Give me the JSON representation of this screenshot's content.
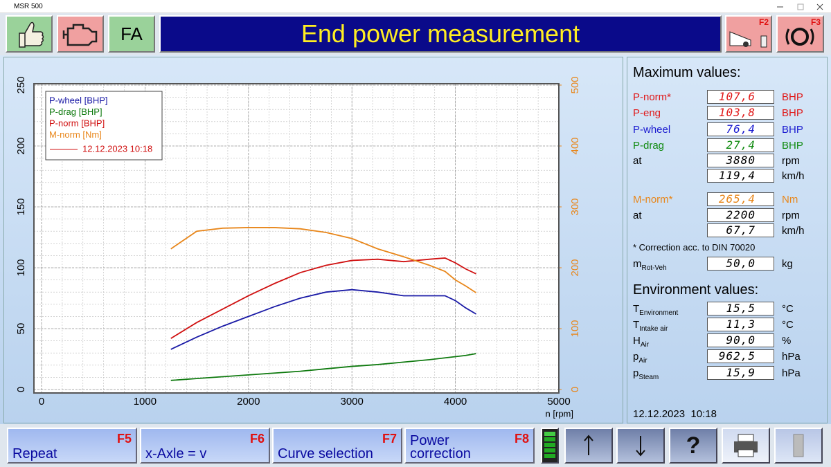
{
  "window": {
    "title": "MSR 500"
  },
  "toolbar": {
    "fa_label": "FA",
    "title": "End power measurement",
    "f2_label": "F2",
    "f3_label": "F3"
  },
  "chart_data": {
    "type": "line",
    "x": [
      1250,
      1500,
      1750,
      2000,
      2250,
      2500,
      2750,
      3000,
      3250,
      3500,
      3750,
      3900,
      4000,
      4100,
      4200
    ],
    "series": [
      {
        "name": "P-wheel [BHP]",
        "color": "#1a1aa6",
        "values": [
          33,
          43,
          52,
          60,
          68,
          75,
          80,
          82,
          80,
          77,
          77,
          77,
          73,
          67,
          62
        ]
      },
      {
        "name": "P-drag [BHP]",
        "color": "#0f7a0f",
        "values": [
          7.5,
          9,
          10.5,
          12,
          13.5,
          15,
          17,
          19,
          20.5,
          22.5,
          24.5,
          26,
          27,
          28,
          29.5
        ]
      },
      {
        "name": "P-norm [BHP]",
        "color": "#d01010",
        "values": [
          42,
          55,
          66,
          77,
          87,
          96,
          102,
          106,
          107,
          105,
          107,
          108,
          104,
          99,
          95
        ]
      },
      {
        "name": "M-norm [Nm]",
        "color": "#e8861a",
        "axis": "y2",
        "values": [
          231,
          260,
          265,
          266,
          266,
          264,
          258,
          248,
          231,
          218,
          204,
          194,
          180,
          170,
          159
        ]
      }
    ],
    "legend_run_label": "12.12.2023 10:18",
    "legend_run_color": "#d01010",
    "x_label": "n [rpm]",
    "xlim": [
      0,
      5000
    ],
    "xticks": [
      0,
      1000,
      2000,
      3000,
      4000,
      5000
    ],
    "ylim": [
      0,
      250
    ],
    "yticks": [
      0,
      50,
      100,
      150,
      200,
      250
    ],
    "y2lim": [
      0,
      500
    ],
    "y2ticks": [
      0,
      100,
      200,
      300,
      400,
      500
    ],
    "grid": true,
    "legend": "upper left"
  },
  "max_values": {
    "heading": "Maximum values:",
    "rows": [
      {
        "label": "P-norm*",
        "value": "107,6",
        "unit": "BHP",
        "color": "#e01818"
      },
      {
        "label": "P-eng",
        "value": "103,8",
        "unit": "BHP",
        "color": "#e01818"
      },
      {
        "label": "P-wheel",
        "value": "76,4",
        "unit": "BHP",
        "color": "#1a1ad0"
      },
      {
        "label": "P-drag",
        "value": "27,4",
        "unit": "BHP",
        "color": "#0f8a0f"
      },
      {
        "label": "at",
        "value": "3880",
        "unit": "rpm",
        "color": "#000000"
      },
      {
        "value": "119,4",
        "unit": "km/h",
        "color": "#000000"
      },
      {
        "label": "M-norm*",
        "value": "265,4",
        "unit": "Nm",
        "color": "#e8861a"
      },
      {
        "label": "at",
        "value": "2200",
        "unit": "rpm",
        "color": "#000000"
      },
      {
        "value": "67,7",
        "unit": "km/h",
        "color": "#000000"
      }
    ],
    "note": "* Correction acc. to DIN 70020",
    "mass": {
      "label": "m",
      "sub": "Rot-Veh",
      "value": "50,0",
      "unit": "kg"
    }
  },
  "environment": {
    "heading": "Environment values:",
    "rows": [
      {
        "label": "T",
        "sub": "Environment",
        "value": "15,5",
        "unit": "°C"
      },
      {
        "label": "T",
        "sub": "Intake air",
        "value": "11,3",
        "unit": "°C"
      },
      {
        "label": "H",
        "sub": "Air",
        "value": "90,0",
        "unit": "%"
      },
      {
        "label": "p",
        "sub": "Air",
        "value": "962,5",
        "unit": "hPa"
      },
      {
        "label": "p",
        "sub": "Steam",
        "value": "15,9",
        "unit": "hPa"
      }
    ]
  },
  "timestamp": "12.12.2023  10:18",
  "footer": {
    "buttons": [
      {
        "label": "Repeat",
        "key": "F5"
      },
      {
        "label": "x-Axle = v",
        "key": "F6"
      },
      {
        "label": "Curve selection",
        "key": "F7"
      },
      {
        "label": "Power correction",
        "key": "F8"
      }
    ],
    "help_label": "?"
  }
}
